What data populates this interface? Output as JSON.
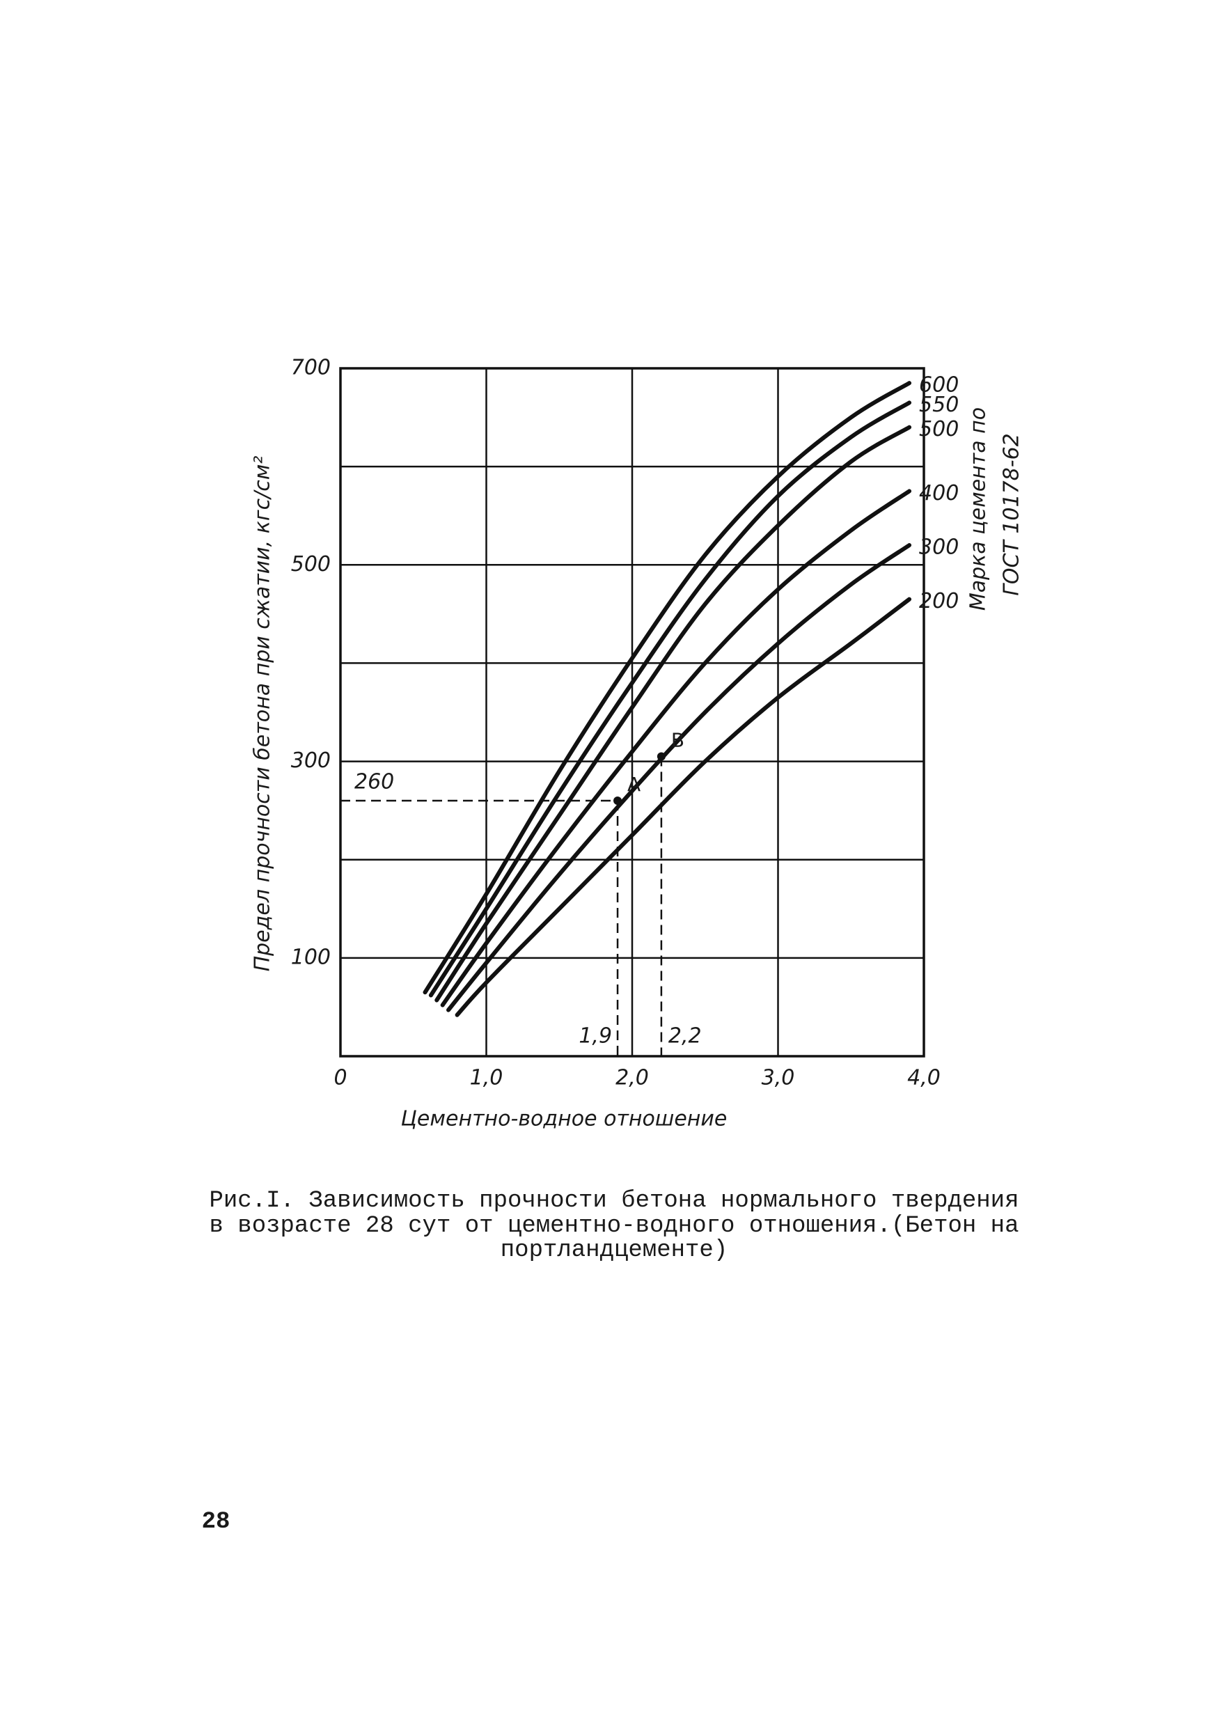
{
  "chart_data": {
    "type": "line",
    "ylabel": "Предел прочности бетона при сжатии, кгс/см²",
    "xlabel": "Цементно-водное отношение",
    "legend_title": [
      "Марка цемента по",
      "ГОСТ 10178-62"
    ],
    "xlim": [
      0,
      4
    ],
    "ylim": [
      0,
      700
    ],
    "xticks": [
      0,
      {
        "value": 1,
        "label": "1,0"
      },
      {
        "value": 2,
        "label": "2,0"
      },
      {
        "value": 3,
        "label": "3,0"
      },
      {
        "value": 4,
        "label": "4,0"
      }
    ],
    "yticks": [
      100,
      300,
      500,
      700
    ],
    "yminor": [
      200,
      400,
      600
    ],
    "grid": true,
    "color": "#111111",
    "series": [
      {
        "name": "600",
        "x": [
          0.58,
          1.0,
          1.5,
          2.0,
          2.5,
          3.0,
          3.5,
          3.9
        ],
        "values": [
          65,
          165,
          290,
          405,
          510,
          590,
          650,
          685
        ]
      },
      {
        "name": "550",
        "x": [
          0.62,
          1.0,
          1.5,
          2.0,
          2.5,
          3.0,
          3.5,
          3.9
        ],
        "values": [
          62,
          150,
          268,
          380,
          485,
          570,
          630,
          665
        ]
      },
      {
        "name": "500",
        "x": [
          0.66,
          1.0,
          1.5,
          2.0,
          2.5,
          3.0,
          3.5,
          3.9
        ],
        "values": [
          57,
          135,
          245,
          355,
          460,
          540,
          605,
          640
        ]
      },
      {
        "name": "400",
        "x": [
          0.7,
          1.0,
          1.5,
          2.0,
          2.5,
          3.0,
          3.5,
          3.9
        ],
        "values": [
          52,
          115,
          215,
          310,
          400,
          475,
          535,
          575
        ]
      },
      {
        "name": "300",
        "x": [
          0.74,
          1.0,
          1.5,
          2.0,
          2.5,
          3.0,
          3.5,
          3.9
        ],
        "values": [
          47,
          95,
          185,
          270,
          350,
          420,
          480,
          520
        ]
      },
      {
        "name": "200",
        "x": [
          0.8,
          1.0,
          1.5,
          2.0,
          2.5,
          3.0,
          3.5,
          3.9
        ],
        "values": [
          42,
          75,
          150,
          225,
          300,
          365,
          420,
          465
        ]
      }
    ],
    "markers": [
      {
        "label": "A",
        "x": 1.9,
        "y": 260
      },
      {
        "label": "B",
        "x": 2.2,
        "y": 305
      }
    ],
    "xguides": [
      {
        "value": 1.9,
        "label": "1,9"
      },
      {
        "value": 2.2,
        "label": "2,2"
      }
    ],
    "yguides": [
      {
        "value": 260,
        "label": "260"
      }
    ]
  },
  "caption": [
    "Рис.I. Зависимость прочности бетона нормального твердения",
    "в возрасте 28 сут от цементно-водного отношения.(Бетон на",
    "портландцементе)"
  ],
  "page_number": "28"
}
